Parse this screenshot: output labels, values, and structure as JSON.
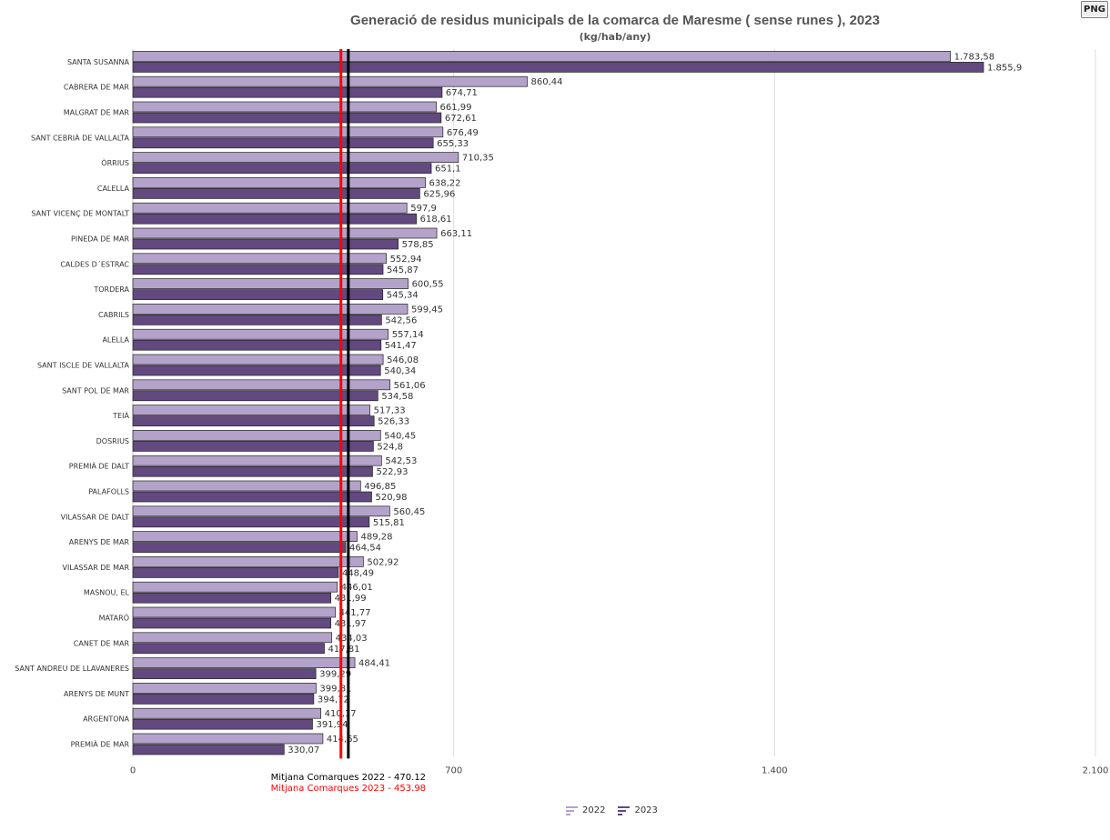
{
  "toolbar": {
    "png_label": "PNG"
  },
  "chart_data": {
    "type": "bar",
    "orientation": "horizontal",
    "title": "Generació de residus municipals de la comarca de Maresme ( sense runes ), 2023",
    "subtitle": "(kg/hab/any)",
    "categories": [
      "SANTA SUSANNA",
      "CABRERA DE MAR",
      "MALGRAT DE MAR",
      "SANT CEBRIÀ DE VALLALTA",
      "ÒRRIUS",
      "CALELLA",
      "SANT VICENÇ DE MONTALT",
      "PINEDA DE MAR",
      "CALDES D´ESTRAC",
      "TORDERA",
      "CABRILS",
      "ALELLA",
      "SANT ISCLE DE VALLALTA",
      "SANT POL DE MAR",
      "TEIÀ",
      "DOSRIUS",
      "PREMIÀ DE DALT",
      "PALAFOLLS",
      "VILASSAR DE DALT",
      "ARENYS DE MAR",
      "VILASSAR DE MAR",
      "MASNOU, EL",
      "MATARÓ",
      "CANET DE MAR",
      "SANT ANDREU DE LLAVANERES",
      "ARENYS DE MUNT",
      "ARGENTONA",
      "PREMIÀ DE MAR"
    ],
    "series": [
      {
        "name": "2022",
        "color": "#b3a2c9",
        "values": [
          1783.58,
          860.44,
          661.99,
          676.49,
          710.35,
          638.22,
          597.9,
          663.11,
          552.94,
          600.55,
          599.45,
          557.14,
          546.08,
          561.06,
          517.33,
          540.45,
          542.53,
          496.85,
          560.45,
          489.28,
          502.92,
          446.01,
          441.77,
          434.03,
          484.41,
          399.81,
          410.17,
          414.65
        ],
        "labels": [
          "1.783,58",
          "860,44",
          "661,99",
          "676,49",
          "710,35",
          "638,22",
          "597,9",
          "663,11",
          "552,94",
          "600,55",
          "599,45",
          "557,14",
          "546,08",
          "561,06",
          "517,33",
          "540,45",
          "542,53",
          "496,85",
          "560,45",
          "489,28",
          "502,92",
          "446,01",
          "441,77",
          "434,03",
          "484,41",
          "399,81",
          "410,17",
          "414,65"
        ]
      },
      {
        "name": "2023",
        "color": "#62497f",
        "values": [
          1855.9,
          674.71,
          672.61,
          655.33,
          651.1,
          625.96,
          618.61,
          578.85,
          545.87,
          545.34,
          542.56,
          541.47,
          540.34,
          534.58,
          526.33,
          524.8,
          522.93,
          520.98,
          515.81,
          464.54,
          448.49,
          431.99,
          431.97,
          417.81,
          399.29,
          394.72,
          391.94,
          330.07
        ],
        "labels": [
          "1.855,9",
          "674,71",
          "672,61",
          "655,33",
          "651,1",
          "625,96",
          "618,61",
          "578,85",
          "545,87",
          "545,34",
          "542,56",
          "541,47",
          "540,34",
          "534,58",
          "526,33",
          "524,8",
          "522,93",
          "520,98",
          "515,81",
          "464,54",
          "448,49",
          "431,99",
          "431,97",
          "417,81",
          "399,29",
          "394,72",
          "391,94",
          "330,07"
        ]
      }
    ],
    "xlim": [
      0,
      2100
    ],
    "xticks": [
      0,
      700,
      1400,
      2100
    ],
    "xtick_labels": [
      "0",
      "700",
      "1.400",
      "2.100"
    ],
    "grid": true,
    "legend_position": "bottom",
    "reference_lines": [
      {
        "label": "Mitjana Comarques 2022 - 470.12",
        "value": 470.12,
        "color": "#000000"
      },
      {
        "label": "Mitjana Comarques 2023 - 453.98",
        "value": 453.98,
        "color": "#ff0000"
      }
    ]
  }
}
